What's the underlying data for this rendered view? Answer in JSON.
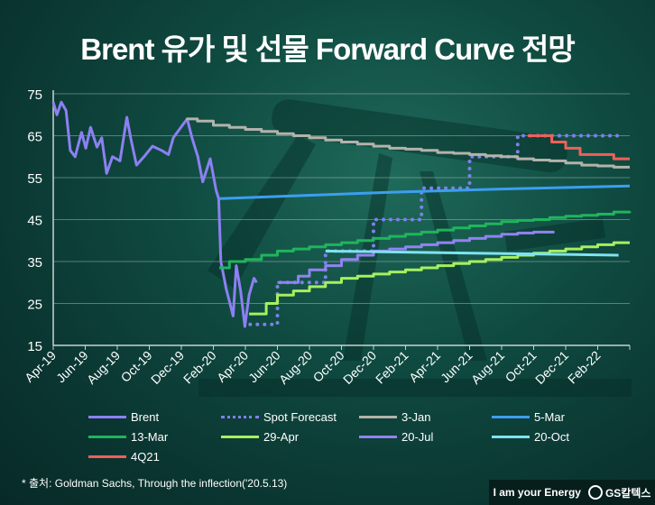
{
  "title": "Brent 유가 및 선물 Forward Curve 전망",
  "source": "* 출처: Goldman Sachs, Through the inflection('20.5.13)",
  "brand": {
    "slogan": "I am your Energy",
    "logo_text": "GS칼텍스"
  },
  "chart_data": {
    "type": "line",
    "title": "Brent 유가 및 선물 Forward Curve 전망",
    "xlabel": "",
    "ylabel": "",
    "ylim": [
      15,
      75
    ],
    "yticks": [
      "15",
      "25",
      "35",
      "45",
      "55",
      "65",
      "75"
    ],
    "xlim": [
      "2019-04",
      "2022-04"
    ],
    "xticks": [
      "Apr-19",
      "Jun-19",
      "Aug-19",
      "Oct-19",
      "Dec-19",
      "Feb-20",
      "Apr-20",
      "Jun-20",
      "Aug-20",
      "Oct-20",
      "Dec-20",
      "Feb-21",
      "Apr-21",
      "Jun-21",
      "Aug-21",
      "Oct-21",
      "Dec-21",
      "Feb-22"
    ],
    "grid": true,
    "legend_placement": "bottom",
    "series": [
      {
        "name": "Brent",
        "color": "#8c80f2",
        "style": "solid",
        "step": false,
        "points": [
          [
            "2019-04-01",
            73
          ],
          [
            "2019-04-08",
            70
          ],
          [
            "2019-04-16",
            73
          ],
          [
            "2019-04-25",
            71
          ],
          [
            "2019-05-03",
            61.5
          ],
          [
            "2019-05-12",
            60
          ],
          [
            "2019-05-24",
            65.8
          ],
          [
            "2019-06-02",
            62
          ],
          [
            "2019-06-11",
            67
          ],
          [
            "2019-06-23",
            62.3
          ],
          [
            "2019-07-02",
            64.5
          ],
          [
            "2019-07-11",
            56
          ],
          [
            "2019-07-22",
            60
          ],
          [
            "2019-08-06",
            59
          ],
          [
            "2019-08-19",
            69.4
          ],
          [
            "2019-08-26",
            64.5
          ],
          [
            "2019-09-07",
            58
          ],
          [
            "2019-09-21",
            60
          ],
          [
            "2019-10-07",
            62.5
          ],
          [
            "2019-10-24",
            61.5
          ],
          [
            "2019-11-07",
            60.5
          ],
          [
            "2019-11-16",
            64.5
          ],
          [
            "2019-12-03",
            67.5
          ],
          [
            "2019-12-12",
            69
          ],
          [
            "2019-12-21",
            64.5
          ],
          [
            "2020-01-02",
            60
          ],
          [
            "2020-01-11",
            54
          ],
          [
            "2020-01-25",
            59.5
          ],
          [
            "2020-02-06",
            52
          ],
          [
            "2020-02-11",
            50
          ],
          [
            "2020-02-15",
            35
          ],
          [
            "2020-02-25",
            28.5
          ],
          [
            "2020-03-08",
            22
          ],
          [
            "2020-03-14",
            34
          ],
          [
            "2020-03-22",
            28
          ],
          [
            "2020-03-30",
            19.5
          ],
          [
            "2020-04-08",
            27
          ],
          [
            "2020-04-17",
            31
          ],
          [
            "2020-04-22",
            30
          ]
        ]
      },
      {
        "name": "Spot Forecast",
        "color": "#7f80ea",
        "style": "dotted",
        "step": true,
        "points": [
          [
            "2020-04-10",
            20
          ],
          [
            "2020-06-01",
            30
          ],
          [
            "2020-09-01",
            37.5
          ],
          [
            "2020-12-01",
            45
          ],
          [
            "2021-03-01",
            52.5
          ],
          [
            "2021-06-01",
            60
          ],
          [
            "2021-09-01",
            65
          ],
          [
            "2022-03-20",
            65
          ]
        ]
      },
      {
        "name": "3-Jan",
        "color": "#b3b3ab",
        "style": "solid",
        "step": true,
        "points": [
          [
            "2019-12-10",
            69
          ],
          [
            "2020-01-01",
            68.5
          ],
          [
            "2020-02-01",
            67.5
          ],
          [
            "2020-03-01",
            67
          ],
          [
            "2020-04-01",
            66.5
          ],
          [
            "2020-05-01",
            66
          ],
          [
            "2020-06-01",
            65.5
          ],
          [
            "2020-07-01",
            65
          ],
          [
            "2020-08-01",
            64.5
          ],
          [
            "2020-09-01",
            64
          ],
          [
            "2020-10-01",
            63.5
          ],
          [
            "2020-11-01",
            63
          ],
          [
            "2020-12-01",
            62.5
          ],
          [
            "2021-01-01",
            62
          ],
          [
            "2021-02-01",
            61.8
          ],
          [
            "2021-03-01",
            61.5
          ],
          [
            "2021-04-01",
            61
          ],
          [
            "2021-05-01",
            60.8
          ],
          [
            "2021-06-01",
            60.5
          ],
          [
            "2021-07-01",
            60.2
          ],
          [
            "2021-08-01",
            60
          ],
          [
            "2021-09-01",
            59.5
          ],
          [
            "2021-10-01",
            59.2
          ],
          [
            "2021-11-01",
            59
          ],
          [
            "2021-12-01",
            58.5
          ],
          [
            "2022-01-01",
            58
          ],
          [
            "2022-02-01",
            57.8
          ],
          [
            "2022-03-01",
            57.5
          ],
          [
            "2022-04-01",
            57.5
          ]
        ]
      },
      {
        "name": "5-Mar",
        "color": "#3d9ef0",
        "style": "solid",
        "step": false,
        "points": [
          [
            "2020-02-12",
            50
          ],
          [
            "2020-06-01",
            50.5
          ],
          [
            "2021-01-01",
            51.5
          ],
          [
            "2021-08-01",
            52.3
          ],
          [
            "2022-04-01",
            53
          ]
        ]
      },
      {
        "name": "13-Mar",
        "color": "#20b45c",
        "style": "solid",
        "step": true,
        "points": [
          [
            "2020-02-12",
            33.5
          ],
          [
            "2020-03-01",
            35
          ],
          [
            "2020-04-01",
            35.5
          ],
          [
            "2020-05-01",
            36.5
          ],
          [
            "2020-06-01",
            37.5
          ],
          [
            "2020-07-01",
            38
          ],
          [
            "2020-08-01",
            38.5
          ],
          [
            "2020-09-01",
            39
          ],
          [
            "2020-10-01",
            39.5
          ],
          [
            "2020-11-01",
            40
          ],
          [
            "2020-12-01",
            40.5
          ],
          [
            "2021-01-01",
            41
          ],
          [
            "2021-02-01",
            41.5
          ],
          [
            "2021-03-01",
            42
          ],
          [
            "2021-04-01",
            42.5
          ],
          [
            "2021-05-01",
            43
          ],
          [
            "2021-06-01",
            43.5
          ],
          [
            "2021-07-01",
            44
          ],
          [
            "2021-08-01",
            44.5
          ],
          [
            "2021-09-01",
            44.8
          ],
          [
            "2021-10-01",
            45
          ],
          [
            "2021-11-01",
            45.5
          ],
          [
            "2021-12-01",
            45.8
          ],
          [
            "2022-01-01",
            46
          ],
          [
            "2022-02-01",
            46.3
          ],
          [
            "2022-03-01",
            46.8
          ],
          [
            "2022-04-01",
            47
          ]
        ]
      },
      {
        "name": "29-Apr",
        "color": "#a6f05e",
        "style": "solid",
        "step": true,
        "points": [
          [
            "2020-04-08",
            22.5
          ],
          [
            "2020-05-10",
            25
          ],
          [
            "2020-06-01",
            27
          ],
          [
            "2020-07-01",
            28
          ],
          [
            "2020-08-01",
            29
          ],
          [
            "2020-09-01",
            30
          ],
          [
            "2020-10-01",
            31
          ],
          [
            "2020-11-01",
            31.5
          ],
          [
            "2020-12-01",
            32
          ],
          [
            "2021-01-01",
            32.5
          ],
          [
            "2021-02-01",
            33
          ],
          [
            "2021-03-01",
            33.5
          ],
          [
            "2021-04-01",
            34
          ],
          [
            "2021-05-01",
            34.5
          ],
          [
            "2021-06-01",
            35
          ],
          [
            "2021-07-01",
            35.5
          ],
          [
            "2021-08-01",
            36
          ],
          [
            "2021-09-01",
            36.5
          ],
          [
            "2021-10-01",
            37
          ],
          [
            "2021-11-01",
            37.5
          ],
          [
            "2021-12-01",
            38
          ],
          [
            "2022-01-01",
            38.5
          ],
          [
            "2022-02-01",
            39
          ],
          [
            "2022-03-01",
            39.5
          ],
          [
            "2022-04-01",
            39.5
          ]
        ]
      },
      {
        "name": "20-Jul",
        "color": "#9282f2",
        "style": "solid",
        "step": true,
        "points": [
          [
            "2020-06-01",
            30
          ],
          [
            "2020-07-10",
            31.5
          ],
          [
            "2020-08-01",
            33
          ],
          [
            "2020-09-01",
            34
          ],
          [
            "2020-10-01",
            35.5
          ],
          [
            "2020-11-01",
            36.5
          ],
          [
            "2020-12-01",
            37.5
          ],
          [
            "2021-01-01",
            38
          ],
          [
            "2021-02-01",
            38.5
          ],
          [
            "2021-03-01",
            39
          ],
          [
            "2021-04-01",
            39.5
          ],
          [
            "2021-05-01",
            40
          ],
          [
            "2021-06-01",
            40.5
          ],
          [
            "2021-07-01",
            41
          ],
          [
            "2021-08-01",
            41.5
          ],
          [
            "2021-09-01",
            41.8
          ],
          [
            "2021-10-01",
            42
          ],
          [
            "2021-11-10",
            42
          ]
        ]
      },
      {
        "name": "20-Oct",
        "color": "#7fe2f0",
        "style": "solid",
        "step": false,
        "points": [
          [
            "2020-09-01",
            37.5
          ],
          [
            "2022-03-10",
            36.5
          ]
        ]
      },
      {
        "name": "4Q21",
        "color": "#f0605a",
        "style": "solid",
        "step": true,
        "points": [
          [
            "2021-09-20",
            65
          ],
          [
            "2021-11-05",
            63.5
          ],
          [
            "2021-12-01",
            62
          ],
          [
            "2021-12-28",
            60.5
          ],
          [
            "2022-03-01",
            59.5
          ],
          [
            "2022-04-01",
            59.5
          ]
        ]
      }
    ]
  }
}
